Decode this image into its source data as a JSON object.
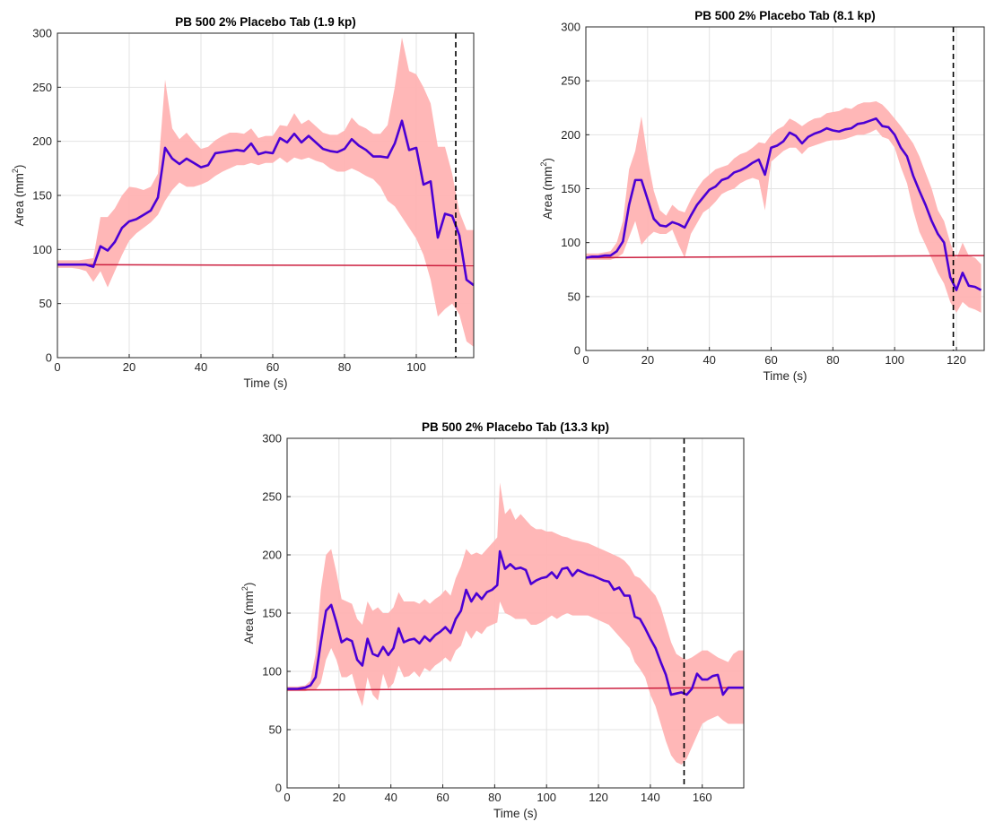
{
  "chart_data": [
    {
      "type": "line",
      "title": "PB 500 2% Placebo Tab (1.9 kp)",
      "xlabel": "Time (s)",
      "ylabel_main": "Area (mm",
      "ylabel_sup": "2",
      "ylabel_end": ")",
      "xlim": [
        0,
        116
      ],
      "ylim": [
        0,
        300
      ],
      "xticks": [
        0,
        20,
        40,
        60,
        80,
        100
      ],
      "yticks": [
        0,
        50,
        100,
        150,
        200,
        250,
        300
      ],
      "grid": true,
      "colors": {
        "mean": "#4b00d4",
        "band": "#ffb3b3",
        "baseline": "#cc1f3f",
        "marker": "#000000"
      },
      "series": [
        {
          "x": [
            0,
            2,
            4,
            6,
            8,
            10,
            12,
            14,
            16,
            18,
            20,
            22,
            24,
            26,
            28,
            30,
            32,
            34,
            36,
            38,
            40,
            42,
            44,
            46,
            48,
            50,
            52,
            54,
            56,
            58,
            60,
            62,
            64,
            66,
            68,
            70,
            72,
            74,
            76,
            78,
            80,
            82,
            84,
            86,
            88,
            90,
            92,
            94,
            96,
            98,
            100,
            102,
            104,
            106,
            108,
            110,
            112,
            114,
            116
          ],
          "y": [
            86,
            86,
            86,
            86,
            86,
            84,
            103,
            99,
            107,
            120,
            126,
            128,
            132,
            136,
            148,
            194,
            184,
            179,
            184,
            180,
            176,
            178,
            189,
            190,
            191,
            192,
            191,
            198,
            188,
            190,
            189,
            203,
            199,
            207,
            199,
            205,
            199,
            193,
            191,
            190,
            193,
            202,
            196,
            192,
            186,
            186,
            185,
            198,
            219,
            192,
            194,
            160,
            163,
            111,
            133,
            131,
            113,
            72,
            67
          ],
          "lower": [
            83,
            83,
            83,
            82,
            80,
            70,
            80,
            65,
            80,
            95,
            108,
            115,
            120,
            125,
            132,
            145,
            155,
            162,
            158,
            158,
            160,
            163,
            168,
            172,
            175,
            178,
            178,
            180,
            178,
            180,
            180,
            185,
            180,
            185,
            183,
            185,
            182,
            180,
            175,
            172,
            172,
            175,
            172,
            168,
            165,
            158,
            145,
            140,
            130,
            120,
            110,
            95,
            72,
            38,
            45,
            50,
            40,
            15,
            10
          ],
          "upper": [
            90,
            90,
            90,
            90,
            91,
            92,
            130,
            130,
            138,
            150,
            158,
            157,
            155,
            158,
            170,
            257,
            212,
            202,
            208,
            200,
            193,
            195,
            201,
            205,
            208,
            208,
            207,
            212,
            203,
            205,
            205,
            215,
            214,
            226,
            216,
            220,
            214,
            208,
            206,
            206,
            210,
            222,
            215,
            212,
            207,
            207,
            215,
            250,
            296,
            265,
            262,
            250,
            235,
            195,
            195,
            170,
            135,
            118,
            118
          ]
        }
      ],
      "baseline": {
        "x": [
          0,
          116
        ],
        "y": [
          86,
          85
        ]
      },
      "vline_x": 111
    },
    {
      "type": "line",
      "title": "PB 500 2% Placebo Tab (8.1 kp)",
      "xlabel": "Time (s)",
      "ylabel_main": "Area (mm",
      "ylabel_sup": "2",
      "ylabel_end": ")",
      "xlim": [
        0,
        129
      ],
      "ylim": [
        0,
        300
      ],
      "xticks": [
        0,
        20,
        40,
        60,
        80,
        100,
        120
      ],
      "yticks": [
        0,
        50,
        100,
        150,
        200,
        250,
        300
      ],
      "grid": true,
      "colors": {
        "mean": "#4b00d4",
        "band": "#ffb3b3",
        "baseline": "#cc1f3f",
        "marker": "#000000"
      },
      "series": [
        {
          "x": [
            0,
            2,
            4,
            6,
            8,
            10,
            12,
            14,
            16,
            18,
            20,
            22,
            24,
            26,
            28,
            30,
            32,
            34,
            36,
            38,
            40,
            42,
            44,
            46,
            48,
            50,
            52,
            54,
            56,
            58,
            60,
            62,
            64,
            66,
            68,
            70,
            72,
            74,
            76,
            78,
            80,
            82,
            84,
            86,
            88,
            90,
            92,
            94,
            96,
            98,
            100,
            102,
            104,
            106,
            108,
            110,
            112,
            114,
            116,
            118,
            120,
            122,
            124,
            126,
            128
          ],
          "y": [
            86,
            87,
            87,
            88,
            88,
            92,
            101,
            135,
            158,
            158,
            140,
            122,
            116,
            115,
            119,
            117,
            114,
            125,
            135,
            142,
            149,
            152,
            158,
            160,
            165,
            167,
            170,
            174,
            177,
            163,
            188,
            190,
            194,
            202,
            199,
            192,
            198,
            201,
            203,
            206,
            204,
            203,
            205,
            206,
            210,
            211,
            213,
            215,
            208,
            207,
            200,
            188,
            180,
            162,
            148,
            135,
            120,
            108,
            100,
            68,
            56,
            72,
            60,
            59,
            56
          ]
        }
      ],
      "band": {
        "x": [
          0,
          2,
          4,
          6,
          8,
          10,
          12,
          14,
          16,
          18,
          20,
          22,
          24,
          26,
          28,
          30,
          32,
          34,
          36,
          38,
          40,
          42,
          44,
          46,
          48,
          50,
          52,
          54,
          56,
          58,
          60,
          62,
          64,
          66,
          68,
          70,
          72,
          74,
          76,
          78,
          80,
          82,
          84,
          86,
          88,
          90,
          92,
          94,
          96,
          98,
          100,
          102,
          104,
          106,
          108,
          110,
          112,
          114,
          116,
          118,
          120,
          122,
          124,
          126,
          128
        ],
        "lower": [
          84,
          84,
          84,
          84,
          84,
          86,
          90,
          105,
          120,
          98,
          105,
          110,
          108,
          108,
          112,
          98,
          86,
          108,
          118,
          128,
          132,
          138,
          145,
          148,
          150,
          155,
          158,
          160,
          158,
          130,
          175,
          180,
          185,
          188,
          188,
          182,
          188,
          190,
          192,
          194,
          195,
          195,
          196,
          198,
          200,
          200,
          202,
          205,
          198,
          196,
          188,
          170,
          155,
          130,
          110,
          98,
          85,
          72,
          62,
          45,
          35,
          45,
          40,
          38,
          35
        ],
        "upper": [
          90,
          90,
          90,
          91,
          92,
          100,
          120,
          168,
          185,
          217,
          178,
          148,
          130,
          125,
          135,
          130,
          128,
          140,
          150,
          158,
          163,
          168,
          170,
          172,
          178,
          182,
          184,
          188,
          193,
          192,
          200,
          205,
          208,
          215,
          212,
          208,
          212,
          215,
          216,
          220,
          221,
          222,
          225,
          224,
          228,
          230,
          230,
          231,
          228,
          222,
          215,
          208,
          200,
          192,
          180,
          165,
          150,
          130,
          120,
          100,
          85,
          100,
          88,
          86,
          80
        ]
      },
      "baseline": {
        "x": [
          0,
          129
        ],
        "y": [
          86,
          88
        ]
      },
      "vline_x": 119
    },
    {
      "type": "line",
      "title": "PB 500 2% Placebo Tab (13.3 kp)",
      "xlabel": "Time (s)",
      "ylabel_main": "Area (mm",
      "ylabel_sup": "2",
      "ylabel_end": ")",
      "xlim": [
        0,
        176
      ],
      "ylim": [
        0,
        300
      ],
      "xticks": [
        0,
        20,
        40,
        60,
        80,
        100,
        120,
        140,
        160
      ],
      "yticks": [
        0,
        50,
        100,
        150,
        200,
        250,
        300
      ],
      "grid": true,
      "colors": {
        "mean": "#4b00d4",
        "band": "#ffb3b3",
        "baseline": "#cc1f3f",
        "marker": "#000000"
      },
      "series": [
        {
          "x": [
            0,
            4,
            7,
            9,
            11,
            13,
            15,
            17,
            19,
            21,
            23,
            25,
            27,
            29,
            31,
            33,
            35,
            37,
            39,
            41,
            43,
            45,
            47,
            49,
            51,
            53,
            55,
            57,
            59,
            61,
            63,
            65,
            67,
            69,
            71,
            73,
            75,
            77,
            79,
            81,
            82,
            84,
            86,
            88,
            90,
            92,
            94,
            96,
            98,
            100,
            102,
            104,
            106,
            108,
            110,
            112,
            114,
            116,
            118,
            120,
            122,
            124,
            126,
            128,
            130,
            132,
            134,
            136,
            138,
            140,
            142,
            144,
            146,
            148,
            150,
            152,
            154,
            156,
            158,
            160,
            162,
            164,
            166,
            168,
            170,
            172,
            174,
            176
          ],
          "y": [
            85,
            85,
            86,
            88,
            95,
            125,
            152,
            157,
            142,
            125,
            128,
            126,
            110,
            105,
            128,
            115,
            113,
            121,
            114,
            120,
            137,
            125,
            127,
            128,
            124,
            130,
            126,
            131,
            134,
            138,
            133,
            145,
            152,
            170,
            160,
            167,
            162,
            168,
            170,
            174,
            203,
            188,
            192,
            188,
            189,
            187,
            175,
            178,
            180,
            181,
            185,
            180,
            188,
            189,
            182,
            187,
            185,
            183,
            182,
            180,
            178,
            177,
            170,
            172,
            165,
            165,
            147,
            145,
            137,
            128,
            120,
            108,
            97,
            80,
            81,
            82,
            80,
            85,
            98,
            93,
            93,
            96,
            97,
            80,
            86,
            86,
            86,
            86
          ],
          "lower": [
            83,
            83,
            83,
            84,
            84,
            90,
            110,
            120,
            110,
            95,
            95,
            98,
            82,
            70,
            95,
            80,
            75,
            98,
            85,
            90,
            105,
            95,
            96,
            100,
            95,
            103,
            100,
            105,
            108,
            112,
            108,
            118,
            122,
            135,
            128,
            135,
            132,
            138,
            140,
            142,
            160,
            150,
            148,
            145,
            145,
            145,
            140,
            140,
            142,
            145,
            148,
            145,
            148,
            150,
            148,
            148,
            148,
            148,
            146,
            144,
            142,
            140,
            135,
            130,
            125,
            120,
            108,
            102,
            95,
            80,
            70,
            55,
            40,
            28,
            22,
            20,
            25,
            35,
            45,
            55,
            58,
            60,
            62,
            58,
            55,
            55,
            55,
            55
          ],
          "upper": [
            87,
            87,
            88,
            92,
            115,
            170,
            200,
            205,
            185,
            162,
            160,
            158,
            145,
            140,
            160,
            152,
            155,
            150,
            150,
            155,
            168,
            160,
            160,
            160,
            158,
            162,
            158,
            162,
            165,
            170,
            165,
            180,
            190,
            205,
            200,
            202,
            200,
            205,
            210,
            215,
            262,
            235,
            240,
            230,
            235,
            230,
            225,
            222,
            222,
            220,
            220,
            218,
            216,
            215,
            213,
            212,
            211,
            210,
            208,
            206,
            204,
            202,
            200,
            198,
            195,
            190,
            182,
            180,
            175,
            170,
            165,
            155,
            140,
            125,
            115,
            112,
            110,
            112,
            115,
            118,
            118,
            115,
            112,
            110,
            108,
            115,
            118,
            118
          ]
        }
      ],
      "baseline": {
        "x": [
          0,
          176
        ],
        "y": [
          84,
          86
        ]
      },
      "vline_x": 153
    }
  ]
}
